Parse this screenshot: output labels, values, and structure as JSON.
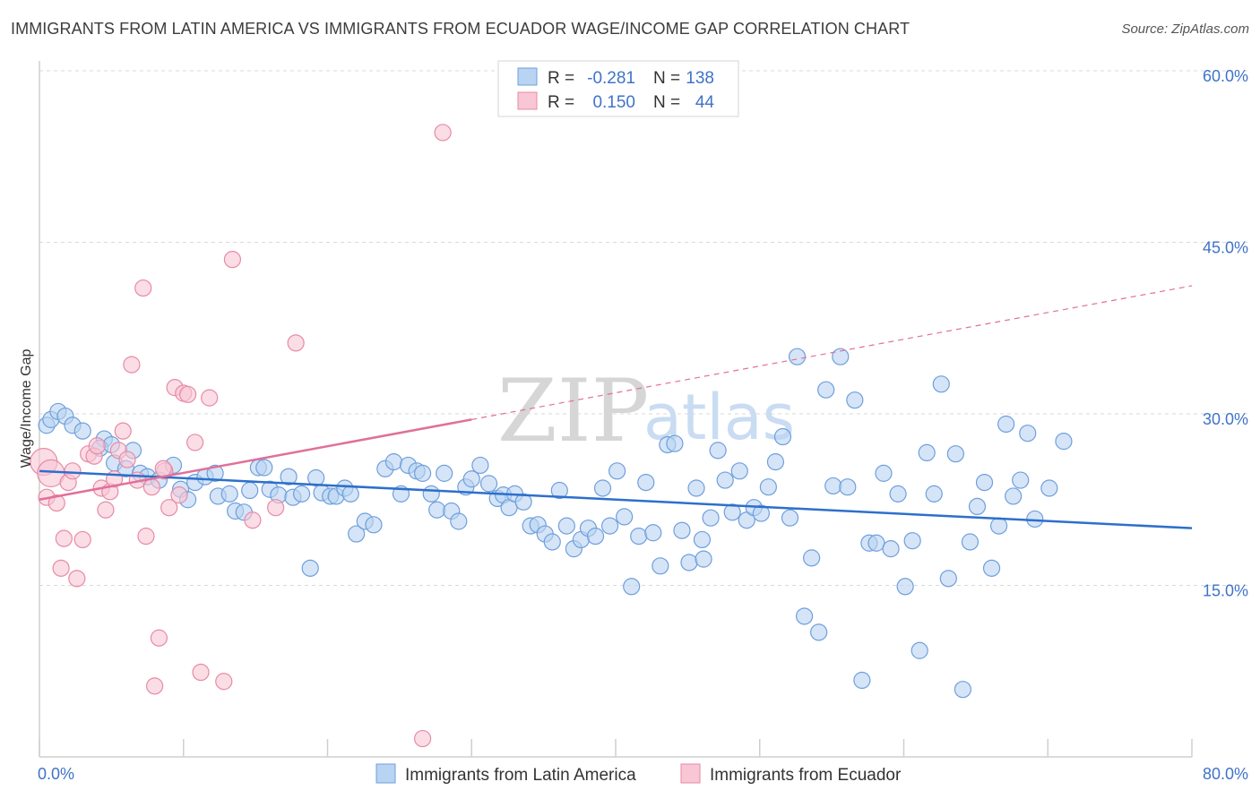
{
  "title": "IMMIGRANTS FROM LATIN AMERICA VS IMMIGRANTS FROM ECUADOR WAGE/INCOME GAP CORRELATION CHART",
  "source": "Source: ZipAtlas.com",
  "watermark": {
    "zip": "ZIP",
    "atlas": "atlas"
  },
  "colors": {
    "blue_fill": "#b9d3f2",
    "blue_stroke": "#6f9fdc",
    "blue_line": "#2d6fcc",
    "pink_fill": "#f8c6d5",
    "pink_stroke": "#e78aa7",
    "pink_line": "#e0709a",
    "grid": "#d9d9d9",
    "accent": "#3f73c8"
  },
  "legend": {
    "rows": [
      {
        "r_label": "R =",
        "r_value": "-0.281",
        "n_label": "N =",
        "n_value": "138"
      },
      {
        "r_label": "R =",
        "r_value": "0.150",
        "n_label": "N =",
        "n_value": "44"
      }
    ]
  },
  "chart_data": {
    "type": "scatter",
    "ylabel": "Wage/Income Gap",
    "xlim": [
      0,
      80
    ],
    "ylim": [
      0,
      60
    ],
    "x_tick_labels": [
      "0.0%",
      "80.0%"
    ],
    "y_ticks": [
      15,
      30,
      45,
      60
    ],
    "y_tick_labels": [
      "15.0%",
      "30.0%",
      "45.0%",
      "60.0%"
    ],
    "grid": "horizontal dashed",
    "legend_position": "top-center",
    "series": [
      {
        "name": "Immigrants from Latin America",
        "color": "#b9d3f2",
        "trend": {
          "x0": 0,
          "y0": 25.0,
          "x1": 80,
          "y1": 20.0,
          "style": "solid"
        },
        "points": [
          [
            0.5,
            29.0
          ],
          [
            0.8,
            29.5
          ],
          [
            1.3,
            30.2
          ],
          [
            1.8,
            29.8
          ],
          [
            2.3,
            29.0
          ],
          [
            3.0,
            28.5
          ],
          [
            4.5,
            27.8
          ],
          [
            4.2,
            27.0
          ],
          [
            5.0,
            27.3
          ],
          [
            5.2,
            25.7
          ],
          [
            6.0,
            25.2
          ],
          [
            6.5,
            26.8
          ],
          [
            7.0,
            24.8
          ],
          [
            7.5,
            24.5
          ],
          [
            8.3,
            24.2
          ],
          [
            9.3,
            25.5
          ],
          [
            9.8,
            23.4
          ],
          [
            10.3,
            22.5
          ],
          [
            10.8,
            24.0
          ],
          [
            11.5,
            24.5
          ],
          [
            12.2,
            24.8
          ],
          [
            12.4,
            22.8
          ],
          [
            13.2,
            23.0
          ],
          [
            13.6,
            21.5
          ],
          [
            14.2,
            21.4
          ],
          [
            14.6,
            23.3
          ],
          [
            15.2,
            25.3
          ],
          [
            15.6,
            25.3
          ],
          [
            16.0,
            23.4
          ],
          [
            16.6,
            22.9
          ],
          [
            17.3,
            24.5
          ],
          [
            17.6,
            22.7
          ],
          [
            18.2,
            23.0
          ],
          [
            18.8,
            16.5
          ],
          [
            19.2,
            24.4
          ],
          [
            19.6,
            23.1
          ],
          [
            20.2,
            22.8
          ],
          [
            20.6,
            22.8
          ],
          [
            21.2,
            23.5
          ],
          [
            21.6,
            23.0
          ],
          [
            22.0,
            19.5
          ],
          [
            22.6,
            20.6
          ],
          [
            23.2,
            20.3
          ],
          [
            24.0,
            25.2
          ],
          [
            24.6,
            25.8
          ],
          [
            25.1,
            23.0
          ],
          [
            25.6,
            25.5
          ],
          [
            26.2,
            25.0
          ],
          [
            26.6,
            24.8
          ],
          [
            27.2,
            23.0
          ],
          [
            27.6,
            21.6
          ],
          [
            28.1,
            24.8
          ],
          [
            28.6,
            21.5
          ],
          [
            29.1,
            20.6
          ],
          [
            29.6,
            23.6
          ],
          [
            30.0,
            24.3
          ],
          [
            30.6,
            25.5
          ],
          [
            31.2,
            23.9
          ],
          [
            31.8,
            22.6
          ],
          [
            32.2,
            22.9
          ],
          [
            32.6,
            21.8
          ],
          [
            33.0,
            23.0
          ],
          [
            33.6,
            22.3
          ],
          [
            34.1,
            20.2
          ],
          [
            34.6,
            20.3
          ],
          [
            35.1,
            19.5
          ],
          [
            35.6,
            18.8
          ],
          [
            36.1,
            23.3
          ],
          [
            36.6,
            20.2
          ],
          [
            37.1,
            18.2
          ],
          [
            37.6,
            19.0
          ],
          [
            38.1,
            20.0
          ],
          [
            38.6,
            19.3
          ],
          [
            39.1,
            23.5
          ],
          [
            39.6,
            20.2
          ],
          [
            40.1,
            25.0
          ],
          [
            40.6,
            21.0
          ],
          [
            41.1,
            14.9
          ],
          [
            41.6,
            19.3
          ],
          [
            42.1,
            24.0
          ],
          [
            42.6,
            19.6
          ],
          [
            43.1,
            16.7
          ],
          [
            43.6,
            27.3
          ],
          [
            44.1,
            27.4
          ],
          [
            44.6,
            19.8
          ],
          [
            45.1,
            17.0
          ],
          [
            45.6,
            23.5
          ],
          [
            46.1,
            17.3
          ],
          [
            46.6,
            20.9
          ],
          [
            47.1,
            26.8
          ],
          [
            47.6,
            24.2
          ],
          [
            48.1,
            21.4
          ],
          [
            48.6,
            25.0
          ],
          [
            49.1,
            20.7
          ],
          [
            49.6,
            21.8
          ],
          [
            50.1,
            21.3
          ],
          [
            50.6,
            23.6
          ],
          [
            51.1,
            25.8
          ],
          [
            51.6,
            28.0
          ],
          [
            52.1,
            20.9
          ],
          [
            52.6,
            35.0
          ],
          [
            53.1,
            12.3
          ],
          [
            53.6,
            17.4
          ],
          [
            54.1,
            10.9
          ],
          [
            54.6,
            32.1
          ],
          [
            55.1,
            23.7
          ],
          [
            55.6,
            35.0
          ],
          [
            56.1,
            23.6
          ],
          [
            56.6,
            31.2
          ],
          [
            57.1,
            6.7
          ],
          [
            57.6,
            18.7
          ],
          [
            58.1,
            18.7
          ],
          [
            58.6,
            24.8
          ],
          [
            59.1,
            18.2
          ],
          [
            59.6,
            23.0
          ],
          [
            60.1,
            14.9
          ],
          [
            60.6,
            18.9
          ],
          [
            61.1,
            9.3
          ],
          [
            61.6,
            26.6
          ],
          [
            62.1,
            23.0
          ],
          [
            62.6,
            32.6
          ],
          [
            63.1,
            15.6
          ],
          [
            63.6,
            26.5
          ],
          [
            64.1,
            5.9
          ],
          [
            64.6,
            18.8
          ],
          [
            65.1,
            21.9
          ],
          [
            65.6,
            24.0
          ],
          [
            66.1,
            16.5
          ],
          [
            66.6,
            20.2
          ],
          [
            67.1,
            29.1
          ],
          [
            67.6,
            22.8
          ],
          [
            68.1,
            24.2
          ],
          [
            68.6,
            28.3
          ],
          [
            69.1,
            20.8
          ],
          [
            70.1,
            23.5
          ],
          [
            71.1,
            27.6
          ],
          [
            46.0,
            19.0
          ]
        ]
      },
      {
        "name": "Immigrants from Ecuador",
        "color": "#f8c6d5",
        "trend": {
          "x0": 0,
          "y0": 22.5,
          "x1": 30,
          "y1": 29.5,
          "style": "solid",
          "ext_x1": 80,
          "ext_y1": 41.2,
          "ext_style": "dashed"
        },
        "points": [
          [
            0.3,
            25.8
          ],
          [
            0.5,
            22.7
          ],
          [
            0.8,
            24.8
          ],
          [
            1.2,
            22.2
          ],
          [
            1.5,
            16.5
          ],
          [
            1.7,
            19.1
          ],
          [
            2.0,
            24.0
          ],
          [
            2.3,
            25.0
          ],
          [
            2.6,
            15.6
          ],
          [
            3.0,
            19.0
          ],
          [
            3.4,
            26.5
          ],
          [
            3.8,
            26.3
          ],
          [
            4.0,
            27.2
          ],
          [
            4.3,
            23.5
          ],
          [
            4.6,
            21.6
          ],
          [
            4.9,
            23.2
          ],
          [
            5.2,
            24.3
          ],
          [
            5.5,
            26.8
          ],
          [
            5.8,
            28.5
          ],
          [
            6.1,
            26.0
          ],
          [
            6.4,
            34.3
          ],
          [
            6.8,
            24.2
          ],
          [
            7.2,
            41.0
          ],
          [
            7.4,
            19.3
          ],
          [
            7.8,
            23.6
          ],
          [
            8.0,
            6.2
          ],
          [
            8.3,
            10.4
          ],
          [
            8.7,
            25.0
          ],
          [
            9.0,
            21.8
          ],
          [
            9.4,
            32.3
          ],
          [
            9.7,
            22.9
          ],
          [
            10.0,
            31.8
          ],
          [
            10.3,
            31.7
          ],
          [
            10.8,
            27.5
          ],
          [
            11.2,
            7.4
          ],
          [
            11.8,
            31.4
          ],
          [
            12.8,
            6.6
          ],
          [
            13.4,
            43.5
          ],
          [
            14.8,
            20.7
          ],
          [
            16.4,
            21.8
          ],
          [
            17.8,
            36.2
          ],
          [
            26.6,
            1.6
          ],
          [
            28.0,
            54.6
          ],
          [
            8.6,
            25.2
          ]
        ]
      }
    ]
  }
}
